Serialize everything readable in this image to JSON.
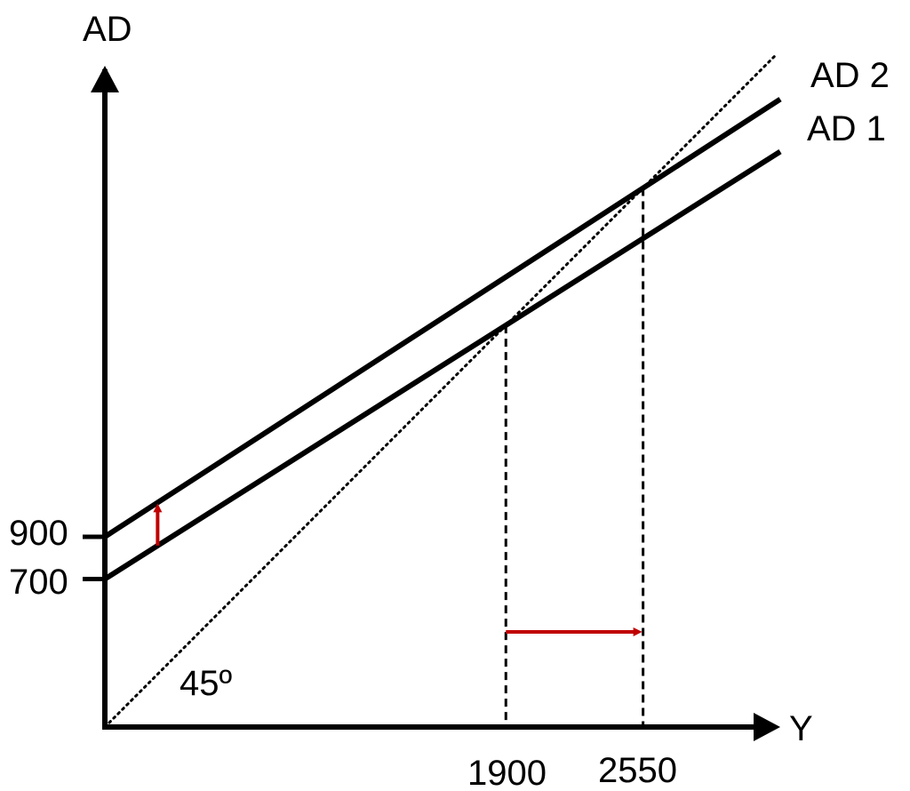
{
  "chart_data": {
    "type": "line",
    "ylabel": "AD",
    "xlabel": "Y",
    "x_ticks": [
      {
        "value": 1900,
        "label": "1900"
      },
      {
        "value": 2550,
        "label": "2550"
      }
    ],
    "y_ticks": [
      {
        "value": 900,
        "label": "900"
      },
      {
        "value": 700,
        "label": "700"
      }
    ],
    "xlim": [
      0,
      3200
    ],
    "ylim": [
      0,
      2880
    ],
    "series": [
      {
        "name": "AD 1",
        "intercept": 700,
        "slope": 0.632,
        "x": [
          0,
          3200
        ],
        "y": [
          700,
          2722
        ],
        "style": "solid",
        "color": "#000000"
      },
      {
        "name": "AD 2",
        "intercept": 900,
        "slope": 0.647,
        "x": [
          0,
          3200
        ],
        "y": [
          900,
          2970
        ],
        "style": "solid",
        "color": "#000000"
      }
    ],
    "reference_line": {
      "x": [
        0,
        3180
      ],
      "y": [
        0,
        3180
      ],
      "style": "dotted",
      "color": "#000000"
    },
    "equilibria": [
      {
        "x": 1900,
        "y": 1900
      },
      {
        "x": 2550,
        "y": 2550
      }
    ],
    "angle_annotation": "45º",
    "shift_arrows": [
      {
        "direction": "up",
        "x": 250,
        "from": 858,
        "to": 1062,
        "color": "#c00000"
      },
      {
        "direction": "right",
        "y": 450,
        "from": 1900,
        "to": 2550,
        "color": "#c00000"
      }
    ],
    "grid": false
  }
}
